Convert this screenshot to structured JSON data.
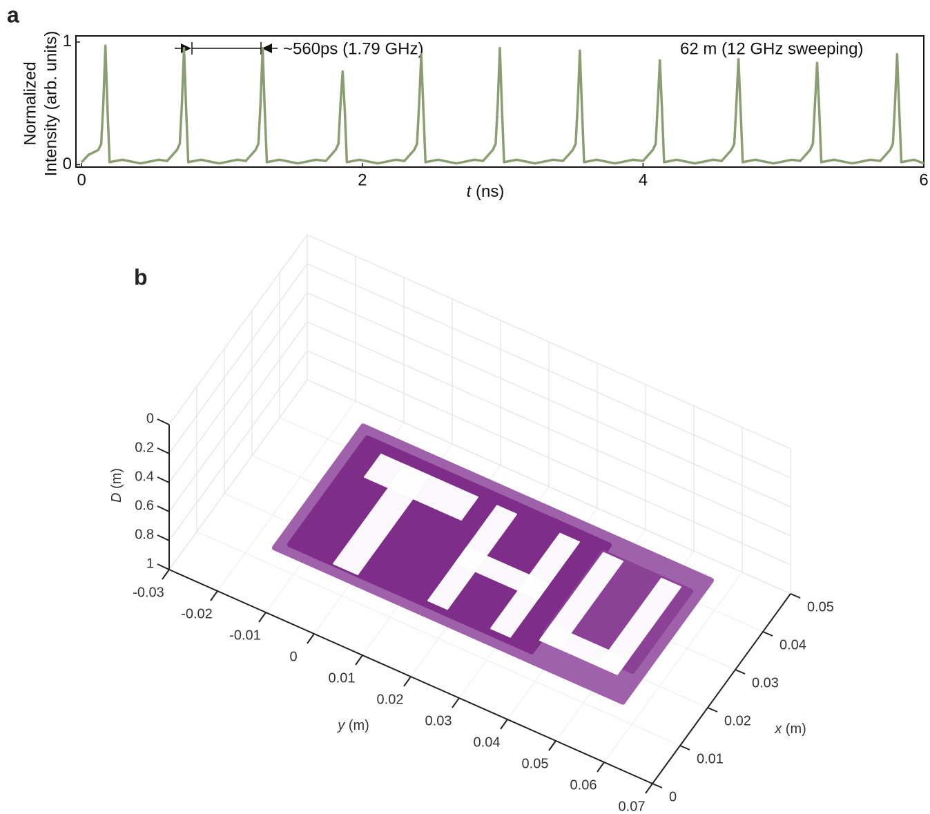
{
  "panel_labels": [
    "a",
    "b"
  ],
  "chart_data": [
    {
      "type": "line",
      "ylabel": [
        "Normalized",
        "Intensity (arb. units)"
      ],
      "xlabel": {
        "var": "t",
        "unit": "(ns)"
      },
      "annotations": [
        "~560ps (1.79 GHz)",
        "62 m (12 GHz sweeping)"
      ],
      "xlim": [
        -0.04,
        6
      ],
      "ylim": [
        -0.02,
        1.05
      ],
      "xticks": [
        0,
        2,
        4,
        6
      ],
      "yticks": [
        0,
        1
      ],
      "color": "#8a9e72",
      "x": [
        0,
        0.05,
        0.12,
        0.14,
        0.155,
        0.17,
        0.185,
        0.2,
        0.29,
        0.42,
        0.55,
        0.61,
        0.68,
        0.7,
        0.715,
        0.73,
        0.745,
        0.76,
        0.85,
        0.98,
        1.11,
        1.17,
        1.24,
        1.26,
        1.275,
        1.29,
        1.305,
        1.32,
        1.41,
        1.54,
        1.67,
        1.74,
        1.81,
        1.83,
        1.845,
        1.86,
        1.875,
        1.89,
        1.98,
        2.11,
        2.24,
        2.3,
        2.37,
        2.39,
        2.405,
        2.42,
        2.435,
        2.45,
        2.54,
        2.67,
        2.8,
        2.86,
        2.93,
        2.95,
        2.965,
        2.98,
        2.995,
        3.01,
        3.1,
        3.23,
        3.36,
        3.43,
        3.5,
        3.52,
        3.535,
        3.55,
        3.565,
        3.58,
        3.67,
        3.8,
        3.93,
        4.0,
        4.07,
        4.09,
        4.105,
        4.12,
        4.135,
        4.15,
        4.24,
        4.37,
        4.5,
        4.56,
        4.63,
        4.65,
        4.665,
        4.68,
        4.695,
        4.71,
        4.8,
        4.93,
        5.06,
        5.12,
        5.19,
        5.21,
        5.225,
        5.24,
        5.255,
        5.27,
        5.36,
        5.49,
        5.62,
        5.69,
        5.76,
        5.78,
        5.795,
        5.81,
        5.825,
        5.84,
        5.93,
        6.0
      ],
      "values": [
        0.02,
        0.08,
        0.12,
        0.17,
        0.5,
        0.97,
        0.45,
        0.02,
        0.04,
        0.01,
        0.04,
        0.03,
        0.12,
        0.17,
        0.5,
        0.95,
        0.45,
        0.02,
        0.04,
        0.01,
        0.04,
        0.03,
        0.12,
        0.17,
        0.5,
        0.95,
        0.45,
        0.02,
        0.04,
        0.01,
        0.04,
        0.03,
        0.12,
        0.17,
        0.5,
        0.76,
        0.45,
        0.02,
        0.04,
        0.01,
        0.04,
        0.03,
        0.12,
        0.17,
        0.5,
        0.9,
        0.45,
        0.02,
        0.04,
        0.01,
        0.04,
        0.03,
        0.12,
        0.17,
        0.5,
        0.95,
        0.45,
        0.02,
        0.04,
        0.01,
        0.04,
        0.03,
        0.12,
        0.17,
        0.5,
        0.93,
        0.45,
        0.02,
        0.04,
        0.01,
        0.04,
        0.03,
        0.12,
        0.17,
        0.5,
        0.85,
        0.45,
        0.02,
        0.04,
        0.01,
        0.04,
        0.03,
        0.12,
        0.17,
        0.5,
        0.86,
        0.45,
        0.02,
        0.04,
        0.01,
        0.04,
        0.03,
        0.12,
        0.17,
        0.5,
        0.83,
        0.45,
        0.02,
        0.04,
        0.01,
        0.04,
        0.03,
        0.12,
        0.17,
        0.5,
        0.9,
        0.45,
        0.02,
        0.04,
        0.01
      ]
    },
    {
      "type": "scatter3d",
      "ylabel": {
        "var": "y",
        "unit": "(m)"
      },
      "xlabel": {
        "var": "x",
        "unit": "(m)"
      },
      "zlabel": {
        "var": "D",
        "unit": "(m)"
      },
      "ylim": [
        -0.03,
        0.07
      ],
      "yticks": [
        -0.03,
        -0.02,
        -0.01,
        0,
        0.01,
        0.02,
        0.03,
        0.04,
        0.05,
        0.06,
        0.07
      ],
      "xlim": [
        0,
        0.05
      ],
      "xticks": [
        0,
        0.01,
        0.02,
        0.03,
        0.04,
        0.05
      ],
      "zlim": [
        0,
        1
      ],
      "zticks": [
        0,
        0.2,
        0.4,
        0.6,
        0.8,
        1
      ],
      "z_reversed": true,
      "grid": true,
      "regions": [
        {
          "y": [
            -0.011,
            0.061
          ],
          "x": [
            0.005,
            0.037
          ],
          "D": 0.7,
          "color": "#9c5ca8"
        },
        {
          "y": [
            -0.009,
            0.041
          ],
          "x": [
            0.007,
            0.035
          ],
          "D": 0.7,
          "color": "#7d2d87"
        },
        {
          "y": [
            0.041,
            0.059
          ],
          "x": [
            0.012,
            0.033
          ],
          "D": 0.7,
          "color": "#8b4096"
        }
      ],
      "cutouts": [
        {
          "y": [
            -0.005,
            0.015
          ],
          "x": [
            0.027,
            0.033
          ],
          "D": 0.7
        },
        {
          "y": [
            0.0,
            0.005
          ],
          "x": [
            0.007,
            0.033
          ],
          "D": 0.7
        },
        {
          "y": [
            0.019,
            0.023
          ],
          "x": [
            0.008,
            0.033
          ],
          "D": 0.7
        },
        {
          "y": [
            0.032,
            0.036
          ],
          "x": [
            0.008,
            0.033
          ],
          "D": 0.7
        },
        {
          "y": [
            0.019,
            0.036
          ],
          "x": [
            0.018,
            0.022
          ],
          "D": 0.7
        },
        {
          "y": [
            0.041,
            0.045
          ],
          "x": [
            0.01,
            0.033
          ],
          "D": 0.7
        },
        {
          "y": [
            0.053,
            0.057
          ],
          "x": [
            0.01,
            0.033
          ],
          "D": 0.7
        },
        {
          "y": [
            0.041,
            0.057
          ],
          "x": [
            0.01,
            0.014
          ],
          "D": 0.7
        }
      ]
    }
  ]
}
